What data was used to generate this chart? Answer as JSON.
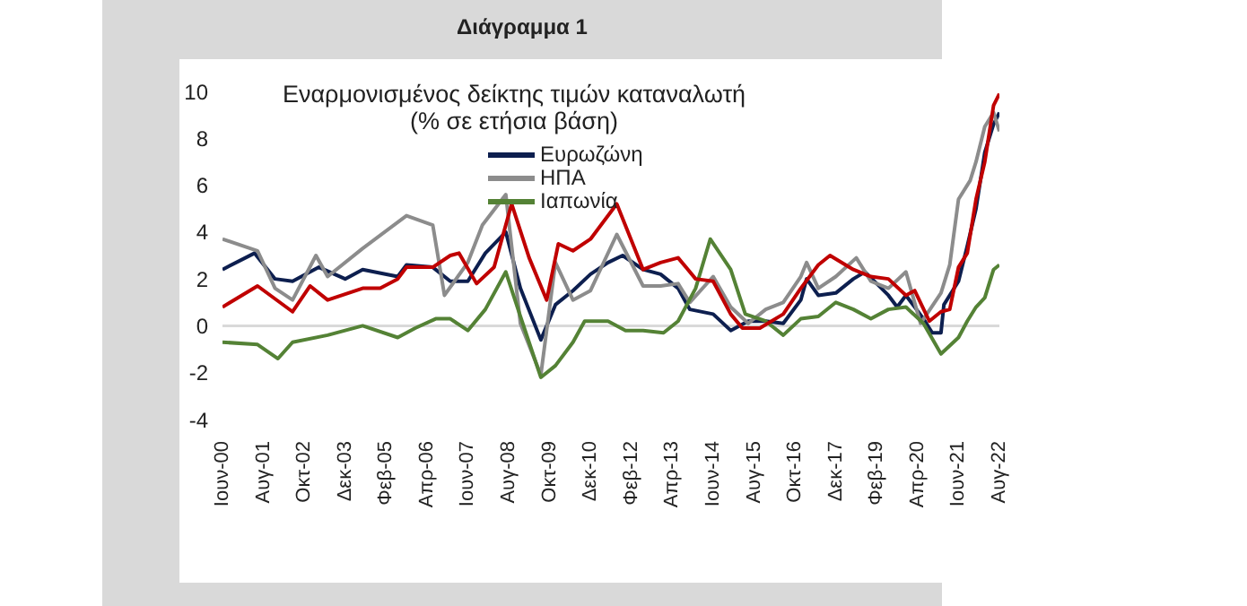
{
  "chart_data": {
    "type": "line",
    "title": "Διάγραμμα 1",
    "subtitle": "Εναρμονισμένος δείκτης τιμών καταναλωτή",
    "annotations": [
      "(% σε ετήσια βάση)"
    ],
    "xlim": [
      "2000-06",
      "2022-08"
    ],
    "xticks": [
      {
        "value": "2000-06",
        "label": "Ιουν-00"
      },
      {
        "value": "2001-08",
        "label": "Αυγ-01"
      },
      {
        "value": "2002-10",
        "label": "Οκτ-02"
      },
      {
        "value": "2003-12",
        "label": "Δεκ-03"
      },
      {
        "value": "2005-02",
        "label": "Φεβ-05"
      },
      {
        "value": "2006-04",
        "label": "Απρ-06"
      },
      {
        "value": "2007-06",
        "label": "Ιουν-07"
      },
      {
        "value": "2008-08",
        "label": "Αυγ-08"
      },
      {
        "value": "2009-10",
        "label": "Οκτ-09"
      },
      {
        "value": "2010-12",
        "label": "Δεκ-10"
      },
      {
        "value": "2012-02",
        "label": "Φεβ-12"
      },
      {
        "value": "2013-04",
        "label": "Απρ-13"
      },
      {
        "value": "2014-06",
        "label": "Ιουν-14"
      },
      {
        "value": "2015-08",
        "label": "Αυγ-15"
      },
      {
        "value": "2016-10",
        "label": "Οκτ-16"
      },
      {
        "value": "2017-12",
        "label": "Δεκ-17"
      },
      {
        "value": "2019-02",
        "label": "Φεβ-19"
      },
      {
        "value": "2020-04",
        "label": "Απρ-20"
      },
      {
        "value": "2021-06",
        "label": "Ιουν-21"
      },
      {
        "value": "2022-08",
        "label": "Αυγ-22"
      }
    ],
    "ylim": [
      -4,
      10
    ],
    "yticks": [
      -4,
      -2,
      0,
      2,
      4,
      6,
      8,
      10
    ],
    "grid": false,
    "legend": "top",
    "marker": "none",
    "line_style": "solid",
    "ref_lines": [
      {
        "axis": "y",
        "value": 0,
        "color": "#d9d9d9"
      }
    ],
    "series": [
      {
        "name": "Ευρωζώνη",
        "color": "#0d1f4f",
        "x": [
          "2000-06",
          "2001-05",
          "2001-12",
          "2002-06",
          "2003-03",
          "2003-12",
          "2004-06",
          "2005-06",
          "2005-09",
          "2006-06",
          "2006-12",
          "2007-06",
          "2007-12",
          "2008-07",
          "2008-12",
          "2009-07",
          "2009-12",
          "2010-06",
          "2010-12",
          "2011-06",
          "2011-11",
          "2012-06",
          "2012-12",
          "2013-06",
          "2013-10",
          "2014-06",
          "2014-12",
          "2015-06",
          "2015-12",
          "2016-06",
          "2016-12",
          "2017-02",
          "2017-06",
          "2017-12",
          "2018-06",
          "2018-10",
          "2019-06",
          "2019-09",
          "2019-12",
          "2020-06",
          "2020-09",
          "2020-12",
          "2021-01",
          "2021-06",
          "2021-09",
          "2021-12",
          "2022-03",
          "2022-06",
          "2022-08"
        ],
        "values": [
          2.4,
          3.1,
          2.0,
          1.9,
          2.5,
          2.0,
          2.4,
          2.1,
          2.6,
          2.5,
          1.9,
          1.9,
          3.1,
          4.0,
          1.6,
          -0.6,
          0.9,
          1.5,
          2.2,
          2.7,
          3.0,
          2.4,
          2.2,
          1.6,
          0.7,
          0.5,
          -0.2,
          0.2,
          0.2,
          0.1,
          1.1,
          2.0,
          1.3,
          1.4,
          2.0,
          2.3,
          1.3,
          0.8,
          1.3,
          0.3,
          -0.3,
          -0.3,
          0.9,
          1.9,
          3.4,
          5.0,
          7.4,
          8.6,
          9.1
        ]
      },
      {
        "name": "ΗΠΑ",
        "color": "#8c8c8c",
        "x": [
          "2000-06",
          "2001-06",
          "2001-12",
          "2002-06",
          "2003-02",
          "2003-06",
          "2004-06",
          "2005-09",
          "2006-06",
          "2006-10",
          "2007-06",
          "2007-11",
          "2008-07",
          "2008-12",
          "2009-07",
          "2009-12",
          "2010-06",
          "2010-12",
          "2011-09",
          "2012-06",
          "2012-12",
          "2013-06",
          "2013-10",
          "2014-06",
          "2014-12",
          "2015-06",
          "2015-12",
          "2016-06",
          "2016-12",
          "2017-02",
          "2017-06",
          "2017-12",
          "2018-07",
          "2018-12",
          "2019-06",
          "2019-12",
          "2020-05",
          "2020-12",
          "2021-03",
          "2021-06",
          "2021-10",
          "2021-12",
          "2022-03",
          "2022-06",
          "2022-08"
        ],
        "values": [
          3.7,
          3.2,
          1.6,
          1.1,
          3.0,
          2.1,
          3.3,
          4.7,
          4.3,
          1.3,
          2.7,
          4.3,
          5.6,
          0.1,
          -2.1,
          2.7,
          1.1,
          1.5,
          3.9,
          1.7,
          1.7,
          1.8,
          1.0,
          2.1,
          0.8,
          0.1,
          0.7,
          1.0,
          2.1,
          2.7,
          1.6,
          2.1,
          2.9,
          1.9,
          1.6,
          2.3,
          0.1,
          1.4,
          2.6,
          5.4,
          6.2,
          7.0,
          8.5,
          9.1,
          8.3
        ]
      },
      {
        "name": "Ιαπωνία",
        "color": "#548235",
        "x": [
          "2000-06",
          "2001-06",
          "2002-01",
          "2002-06",
          "2003-06",
          "2004-06",
          "2005-06",
          "2005-12",
          "2006-07",
          "2006-12",
          "2007-06",
          "2007-12",
          "2008-07",
          "2008-12",
          "2009-07",
          "2009-12",
          "2010-06",
          "2010-10",
          "2011-06",
          "2011-12",
          "2012-06",
          "2013-01",
          "2013-06",
          "2013-12",
          "2014-05",
          "2014-12",
          "2015-05",
          "2015-12",
          "2016-06",
          "2016-12",
          "2017-06",
          "2017-12",
          "2018-06",
          "2018-12",
          "2019-06",
          "2019-12",
          "2020-06",
          "2020-12",
          "2021-06",
          "2021-09",
          "2021-12",
          "2022-03",
          "2022-06",
          "2022-08"
        ],
        "values": [
          -0.7,
          -0.8,
          -1.4,
          -0.7,
          -0.4,
          0.0,
          -0.5,
          -0.1,
          0.3,
          0.3,
          -0.2,
          0.7,
          2.3,
          0.4,
          -2.2,
          -1.7,
          -0.7,
          0.2,
          0.2,
          -0.2,
          -0.2,
          -0.3,
          0.2,
          1.6,
          3.7,
          2.4,
          0.5,
          0.2,
          -0.4,
          0.3,
          0.4,
          1.0,
          0.7,
          0.3,
          0.7,
          0.8,
          0.1,
          -1.2,
          -0.5,
          0.2,
          0.8,
          1.2,
          2.4,
          2.6
        ]
      },
      {
        "color": "#c00000",
        "x": [
          "2000-06",
          "2001-06",
          "2002-06",
          "2002-12",
          "2003-06",
          "2004-06",
          "2004-12",
          "2005-06",
          "2005-09",
          "2006-06",
          "2006-12",
          "2007-03",
          "2007-09",
          "2008-03",
          "2008-09",
          "2009-03",
          "2009-09",
          "2010-01",
          "2010-06",
          "2010-12",
          "2011-09",
          "2012-06",
          "2012-12",
          "2013-06",
          "2013-12",
          "2014-06",
          "2014-12",
          "2015-04",
          "2015-10",
          "2016-06",
          "2016-12",
          "2017-06",
          "2017-10",
          "2018-06",
          "2018-12",
          "2019-06",
          "2019-12",
          "2020-03",
          "2020-08",
          "2020-12",
          "2021-03",
          "2021-06",
          "2021-09",
          "2021-12",
          "2022-03",
          "2022-06",
          "2022-08"
        ],
        "values": [
          0.8,
          1.7,
          0.6,
          1.7,
          1.1,
          1.6,
          1.6,
          2.0,
          2.5,
          2.5,
          3.0,
          3.1,
          1.8,
          2.5,
          5.2,
          2.9,
          1.1,
          3.5,
          3.2,
          3.7,
          5.2,
          2.4,
          2.7,
          2.9,
          2.0,
          1.9,
          0.5,
          -0.1,
          -0.1,
          0.5,
          1.6,
          2.6,
          3.0,
          2.4,
          2.1,
          2.0,
          1.3,
          1.5,
          0.2,
          0.6,
          0.7,
          2.5,
          3.1,
          5.4,
          7.0,
          9.4,
          9.9
        ]
      }
    ]
  }
}
